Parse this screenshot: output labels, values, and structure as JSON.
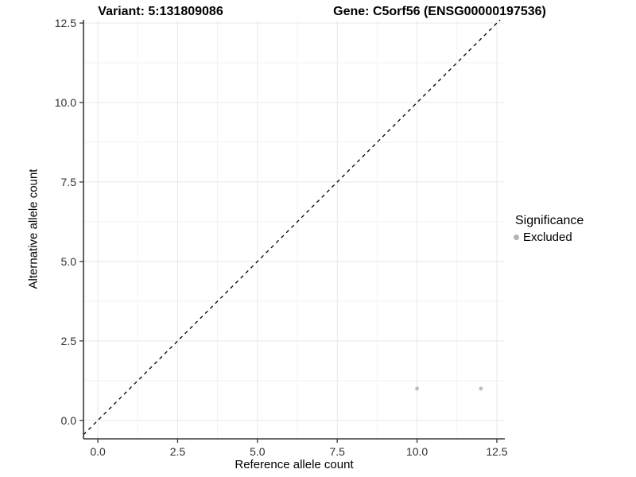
{
  "chart_data": {
    "type": "scatter",
    "title_left": "Variant: 5:131809086",
    "title_right": "Gene: C5orf56 (ENSG00000197536)",
    "xlabel": "Reference allele count",
    "ylabel": "Alternative allele count",
    "xlim": [
      -0.45,
      12.75
    ],
    "ylim": [
      -0.58,
      12.6
    ],
    "major_ticks": [
      0,
      2.5,
      5,
      7.5,
      10,
      12.5
    ],
    "tick_labels": [
      "0.0",
      "2.5",
      "5.0",
      "7.5",
      "10.0",
      "12.5"
    ],
    "minor_ticks": [
      1.25,
      3.75,
      6.25,
      8.75,
      11.25
    ],
    "grid": true,
    "identity_line": {
      "slope": 1,
      "intercept": 0,
      "style": "dashed",
      "color": "#000000"
    },
    "series": [
      {
        "name": "Excluded",
        "color": "#bdbdbd",
        "points": [
          {
            "x": 10,
            "y": 1
          },
          {
            "x": 12,
            "y": 1
          }
        ]
      }
    ],
    "legend": {
      "title": "Significance",
      "position": "right",
      "items": [
        {
          "label": "Excluded",
          "color": "#b3b3b3"
        }
      ]
    },
    "colors": {
      "axis_line": "#383838",
      "tick_text": "#303030",
      "grid_major": "#e8e8e8",
      "grid_minor": "#f3f3f3",
      "background": "#ffffff"
    }
  }
}
